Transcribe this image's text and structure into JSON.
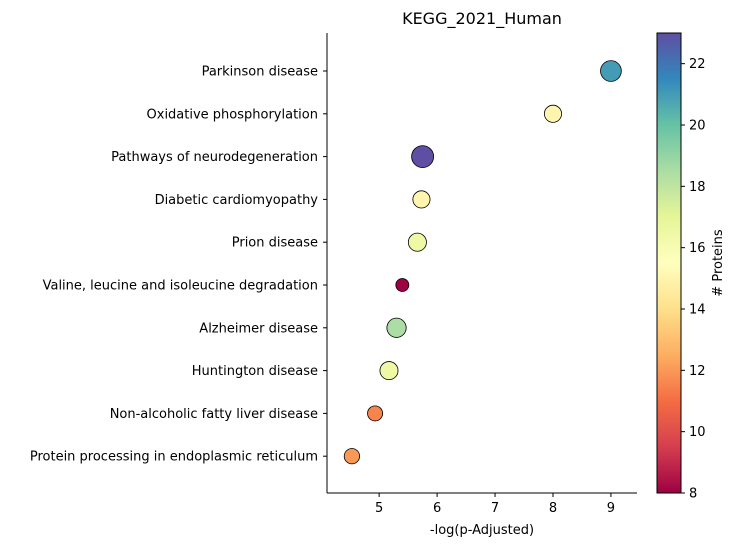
{
  "chart_data": {
    "type": "scatter",
    "title": "KEGG_2021_Human",
    "xlabel": "-log(p-Adjusted)",
    "ylabel": "",
    "xlim": [
      4.1,
      9.45
    ],
    "xticks": [
      5,
      6,
      7,
      8,
      9
    ],
    "grid": false,
    "categories": [
      "Parkinson disease",
      "Oxidative phosphorylation",
      "Pathways of neurodegeneration",
      "Diabetic cardiomyopathy",
      "Prion disease",
      "Valine, leucine and isoleucine degradation",
      "Alzheimer disease",
      "Huntington disease",
      "Non-alcoholic fatty liver disease",
      "Protein processing in endoplasmic reticulum"
    ],
    "points": [
      {
        "category": "Parkinson disease",
        "x": 9.0,
        "proteins": 21
      },
      {
        "category": "Oxidative phosphorylation",
        "x": 8.0,
        "proteins": 15
      },
      {
        "category": "Pathways of neurodegeneration",
        "x": 5.75,
        "proteins": 23
      },
      {
        "category": "Diabetic cardiomyopathy",
        "x": 5.73,
        "proteins": 15
      },
      {
        "category": "Prion disease",
        "x": 5.66,
        "proteins": 16.5
      },
      {
        "category": "Valine, leucine and isoleucine degradation",
        "x": 5.4,
        "proteins": 8
      },
      {
        "category": "Alzheimer disease",
        "x": 5.3,
        "proteins": 18.5
      },
      {
        "category": "Huntington disease",
        "x": 5.17,
        "proteins": 16.5
      },
      {
        "category": "Non-alcoholic fatty liver disease",
        "x": 4.93,
        "proteins": 11.5
      },
      {
        "category": "Protein processing in endoplasmic reticulum",
        "x": 4.53,
        "proteins": 12
      }
    ],
    "colorbar": {
      "label": "# Proteins",
      "min": 8,
      "max": 23,
      "ticks": [
        8,
        10,
        12,
        14,
        16,
        18,
        20,
        22
      ],
      "colormap": "Spectral",
      "colors": [
        "#9e0142",
        "#d53e4f",
        "#f46d43",
        "#fdae61",
        "#fee08b",
        "#ffffbf",
        "#e6f598",
        "#abdda4",
        "#66c2a5",
        "#3288bd",
        "#5e4fa2"
      ]
    },
    "size_encoding": "# Proteins"
  }
}
